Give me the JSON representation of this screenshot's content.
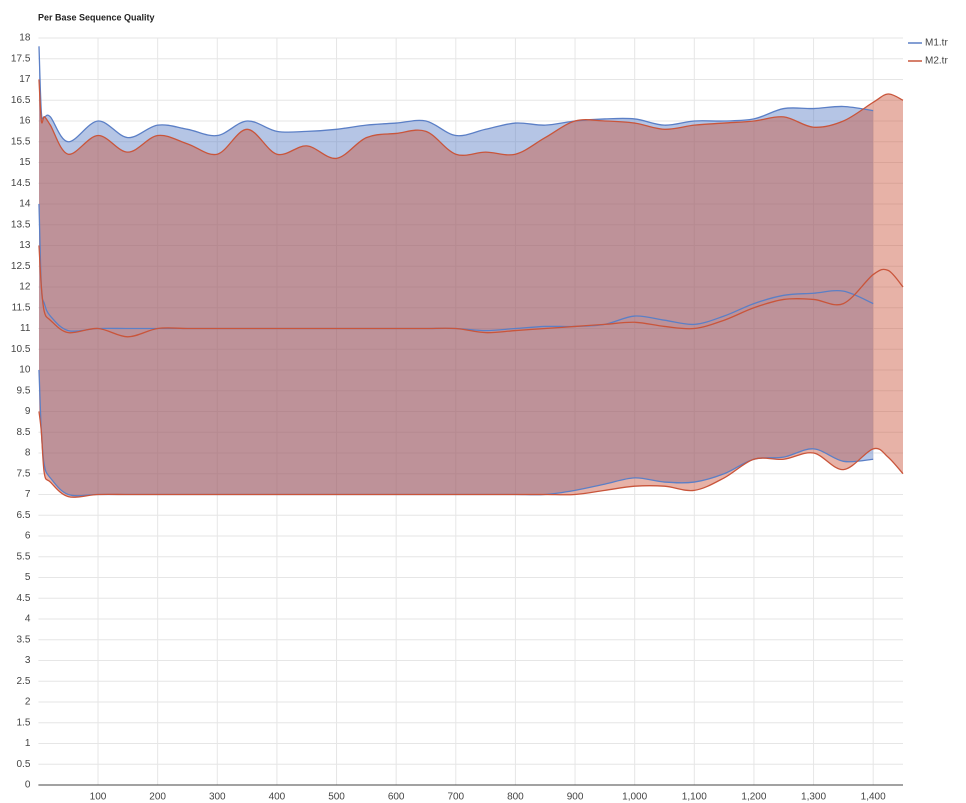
{
  "chart_data": {
    "type": "band",
    "title": "Per Base Sequence Quality",
    "xlim": [
      0,
      1450
    ],
    "ylim": [
      0,
      18
    ],
    "xticks": [
      100,
      200,
      300,
      400,
      500,
      600,
      700,
      800,
      900,
      {
        "value": 1000,
        "label": "1,000"
      },
      {
        "value": 1100,
        "label": "1,100"
      },
      {
        "value": 1200,
        "label": "1,200"
      },
      {
        "value": 1300,
        "label": "1,300"
      },
      {
        "value": 1400,
        "label": "1,400"
      }
    ],
    "yticks": [
      0,
      0.5,
      1,
      1.5,
      2,
      2.5,
      3,
      3.5,
      4,
      4.5,
      5,
      5.5,
      6,
      6.5,
      7,
      7.5,
      8,
      8.5,
      9,
      9.5,
      10,
      10.5,
      11,
      11.5,
      12,
      12.5,
      13,
      13.5,
      14,
      14.5,
      15,
      15.5,
      16,
      16.5,
      17,
      17.5,
      18
    ],
    "grid": true,
    "legend": "top-right",
    "series": [
      {
        "name": "M1.tr",
        "color": "#5b7fc6",
        "x": [
          1,
          5,
          10,
          20,
          50,
          100,
          150,
          200,
          250,
          300,
          350,
          400,
          450,
          500,
          550,
          600,
          650,
          700,
          750,
          800,
          850,
          900,
          950,
          1000,
          1050,
          1100,
          1150,
          1200,
          1250,
          1300,
          1350,
          1400
        ],
        "upper": [
          17.8,
          16.2,
          16.1,
          16.1,
          15.5,
          16.0,
          15.6,
          15.9,
          15.8,
          15.65,
          16.0,
          15.75,
          15.75,
          15.8,
          15.9,
          15.95,
          16.0,
          15.65,
          15.8,
          15.95,
          15.9,
          16.0,
          16.05,
          16.05,
          15.9,
          16.0,
          16.0,
          16.05,
          16.3,
          16.3,
          16.35,
          16.25
        ],
        "values": [
          14,
          12,
          11.6,
          11.3,
          10.95,
          11.0,
          11.0,
          11.0,
          11.0,
          11.0,
          11.0,
          11.0,
          11.0,
          11.0,
          11.0,
          11.0,
          11.0,
          11.0,
          10.95,
          11.0,
          11.05,
          11.05,
          11.1,
          11.3,
          11.2,
          11.1,
          11.3,
          11.6,
          11.8,
          11.85,
          11.9,
          11.6
        ],
        "lower": [
          10,
          8.5,
          7.7,
          7.4,
          7.0,
          7.0,
          7.0,
          7.0,
          7.0,
          7.0,
          7.0,
          7.0,
          7.0,
          7.0,
          7.0,
          7.0,
          7.0,
          7.0,
          7.0,
          7.0,
          7.0,
          7.1,
          7.25,
          7.4,
          7.3,
          7.3,
          7.5,
          7.85,
          7.9,
          8.1,
          7.8,
          7.85
        ]
      },
      {
        "name": "M2.tr",
        "color": "#c9553b",
        "x": [
          1,
          5,
          10,
          20,
          50,
          100,
          150,
          200,
          250,
          300,
          350,
          400,
          450,
          500,
          550,
          600,
          650,
          700,
          750,
          800,
          850,
          900,
          950,
          1000,
          1050,
          1100,
          1150,
          1200,
          1250,
          1300,
          1350,
          1400,
          1425,
          1450
        ],
        "upper": [
          17.0,
          16.0,
          16.1,
          15.9,
          15.2,
          15.65,
          15.25,
          15.65,
          15.45,
          15.2,
          15.8,
          15.2,
          15.4,
          15.1,
          15.6,
          15.7,
          15.75,
          15.2,
          15.25,
          15.2,
          15.6,
          16.0,
          16.0,
          15.95,
          15.8,
          15.9,
          15.95,
          16.0,
          16.1,
          15.85,
          16.0,
          16.45,
          16.65,
          16.5
        ],
        "values": [
          13,
          12,
          11.4,
          11.2,
          10.9,
          11.0,
          10.8,
          11.0,
          11.0,
          11.0,
          11.0,
          11.0,
          11.0,
          11.0,
          11.0,
          11.0,
          11.0,
          11.0,
          10.9,
          10.95,
          11.0,
          11.05,
          11.1,
          11.15,
          11.05,
          11.0,
          11.2,
          11.5,
          11.7,
          11.7,
          11.6,
          12.3,
          12.4,
          12.0
        ],
        "lower": [
          9,
          8.5,
          7.5,
          7.3,
          6.95,
          7.0,
          7.0,
          7.0,
          7.0,
          7.0,
          7.0,
          7.0,
          7.0,
          7.0,
          7.0,
          7.0,
          7.0,
          7.0,
          7.0,
          7.0,
          7.0,
          7.0,
          7.1,
          7.2,
          7.2,
          7.1,
          7.4,
          7.85,
          7.85,
          8.0,
          7.6,
          8.1,
          7.9,
          7.5
        ]
      }
    ]
  }
}
